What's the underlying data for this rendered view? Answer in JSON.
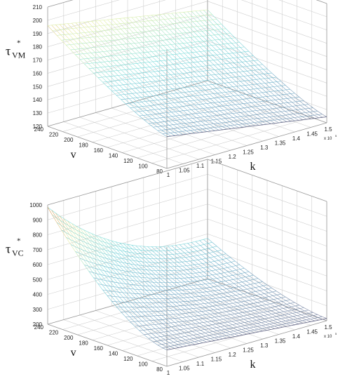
{
  "chart_data": [
    {
      "type": "surface",
      "zlabel_symbol": "τ",
      "zlabel_sub": "VM",
      "zlabel_sup": "*",
      "xlabel": "k",
      "ylabel": "v",
      "x_multiplier": "x 10",
      "x_multiplier_exp": "5",
      "xlim": [
        1.0,
        1.5
      ],
      "ylim": [
        80,
        240
      ],
      "zlim": [
        120,
        210
      ],
      "xticks": [
        1,
        1.05,
        1.1,
        1.15,
        1.2,
        1.25,
        1.3,
        1.35,
        1.4,
        1.45,
        1.5
      ],
      "xtick_labels": [
        "1",
        "1.05",
        "1.1",
        "1.15",
        "1.2",
        "1.25",
        "1.3",
        "1.35",
        "1.4",
        "1.45",
        "1.5"
      ],
      "yticks": [
        80,
        100,
        120,
        140,
        160,
        180,
        200,
        220,
        240
      ],
      "ytick_labels": [
        "80",
        "100",
        "120",
        "140",
        "160",
        "180",
        "200",
        "220",
        "240"
      ],
      "zticks": [
        120,
        130,
        140,
        150,
        160,
        170,
        180,
        190,
        200,
        210
      ],
      "ztick_labels": [
        "120",
        "130",
        "140",
        "150",
        "160",
        "170",
        "180",
        "190",
        "200",
        "210"
      ],
      "grid": true,
      "colormap": "hot-to-cool (orange at high values, yellow, cyan, blue at low values)",
      "surface_samples": [
        {
          "k": 1.0,
          "v": 240,
          "z": 196
        },
        {
          "k": 1.5,
          "v": 240,
          "z": 176
        },
        {
          "k": 1.0,
          "v": 80,
          "z": 144
        },
        {
          "k": 1.5,
          "v": 80,
          "z": 125
        }
      ]
    },
    {
      "type": "surface",
      "zlabel_symbol": "τ",
      "zlabel_sub": "VC",
      "zlabel_sup": "*",
      "xlabel": "k",
      "ylabel": "v",
      "x_multiplier": "x 10",
      "x_multiplier_exp": "5",
      "xlim": [
        1.0,
        1.5
      ],
      "ylim": [
        80,
        240
      ],
      "zlim": [
        200,
        1000
      ],
      "xticks": [
        1,
        1.05,
        1.1,
        1.15,
        1.2,
        1.25,
        1.3,
        1.35,
        1.4,
        1.45,
        1.5
      ],
      "xtick_labels": [
        "1",
        "1.05",
        "1.1",
        "1.15",
        "1.2",
        "1.25",
        "1.3",
        "1.35",
        "1.4",
        "1.45",
        "1.5"
      ],
      "yticks": [
        80,
        100,
        120,
        140,
        160,
        180,
        200,
        220,
        240
      ],
      "ytick_labels": [
        "80",
        "100",
        "120",
        "140",
        "160",
        "180",
        "200",
        "220",
        "240"
      ],
      "zticks": [
        200,
        300,
        400,
        500,
        600,
        700,
        800,
        900,
        1000
      ],
      "ztick_labels": [
        "200",
        "300",
        "400",
        "500",
        "600",
        "700",
        "800",
        "900",
        "1000"
      ],
      "grid": true,
      "colormap": "hot-to-cool (orange at high values, yellow, cyan, blue at low values)",
      "surface_samples": [
        {
          "k": 1.0,
          "v": 240,
          "z": 985
        },
        {
          "k": 1.5,
          "v": 240,
          "z": 470
        },
        {
          "k": 1.0,
          "v": 80,
          "z": 310
        },
        {
          "k": 1.5,
          "v": 80,
          "z": 215
        }
      ]
    }
  ]
}
